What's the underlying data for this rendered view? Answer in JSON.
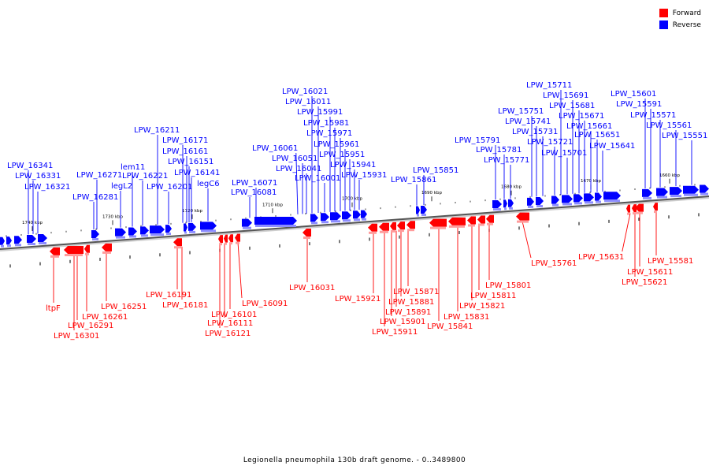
{
  "legend": {
    "forward": {
      "label": "Forward",
      "color": "#ff0000"
    },
    "reverse": {
      "label": "Reverse",
      "color": "#0000ff"
    }
  },
  "caption": "Legionella pneumophila 130b draft genome. - 0..3489800",
  "ticks": [
    "1740 kbp",
    "1730 kbp",
    "1720 kbp",
    "1710 kbp",
    "1700 kbp",
    "1690 kbp",
    "1680 kbp",
    "1670 kbp",
    "1660 kbp"
  ],
  "reverse_labels": [
    "LPW_16341",
    "LPW_16331",
    "LPW_16321",
    "LPW_16281",
    "LPW_16271",
    "lem11",
    "legL2",
    "LPW_16221",
    "LPW_16211",
    "LPW_16201",
    "LPW_16171",
    "LPW_16161",
    "LPW_16151",
    "LPW_16141",
    "legC6",
    "LPW_16081",
    "LPW_16071",
    "LPW_16061",
    "LPW_16051",
    "LPW_16041",
    "LPW_16021",
    "LPW_16011",
    "LPW_16001",
    "LPW_15991",
    "LPW_15981",
    "LPW_15971",
    "LPW_15961",
    "LPW_15951",
    "LPW_15941",
    "LPW_15931",
    "LPW_15861",
    "LPW_15851",
    "LPW_15791",
    "LPW_15781",
    "LPW_15771",
    "LPW_15751",
    "LPW_15741",
    "LPW_15731",
    "LPW_15721",
    "LPW_15711",
    "LPW_15701",
    "LPW_15691",
    "LPW_15681",
    "LPW_15671",
    "LPW_15661",
    "LPW_15651",
    "LPW_15641",
    "LPW_15601",
    "LPW_15591",
    "LPW_15571",
    "LPW_15561",
    "LPW_15551"
  ],
  "forward_labels": [
    "ltpF",
    "LPW_16301",
    "LPW_16291",
    "LPW_16261",
    "LPW_16251",
    "LPW_16191",
    "LPW_16181",
    "LPW_16121",
    "LPW_16111",
    "LPW_16101",
    "LPW_16091",
    "LPW_16031",
    "LPW_15921",
    "LPW_15911",
    "LPW_15901",
    "LPW_15891",
    "LPW_15881",
    "LPW_15871",
    "LPW_15841",
    "LPW_15831",
    "LPW_15821",
    "LPW_15811",
    "LPW_15801",
    "LPW_15761",
    "LPW_15631",
    "LPW_15621",
    "LPW_15611",
    "LPW_15581"
  ]
}
